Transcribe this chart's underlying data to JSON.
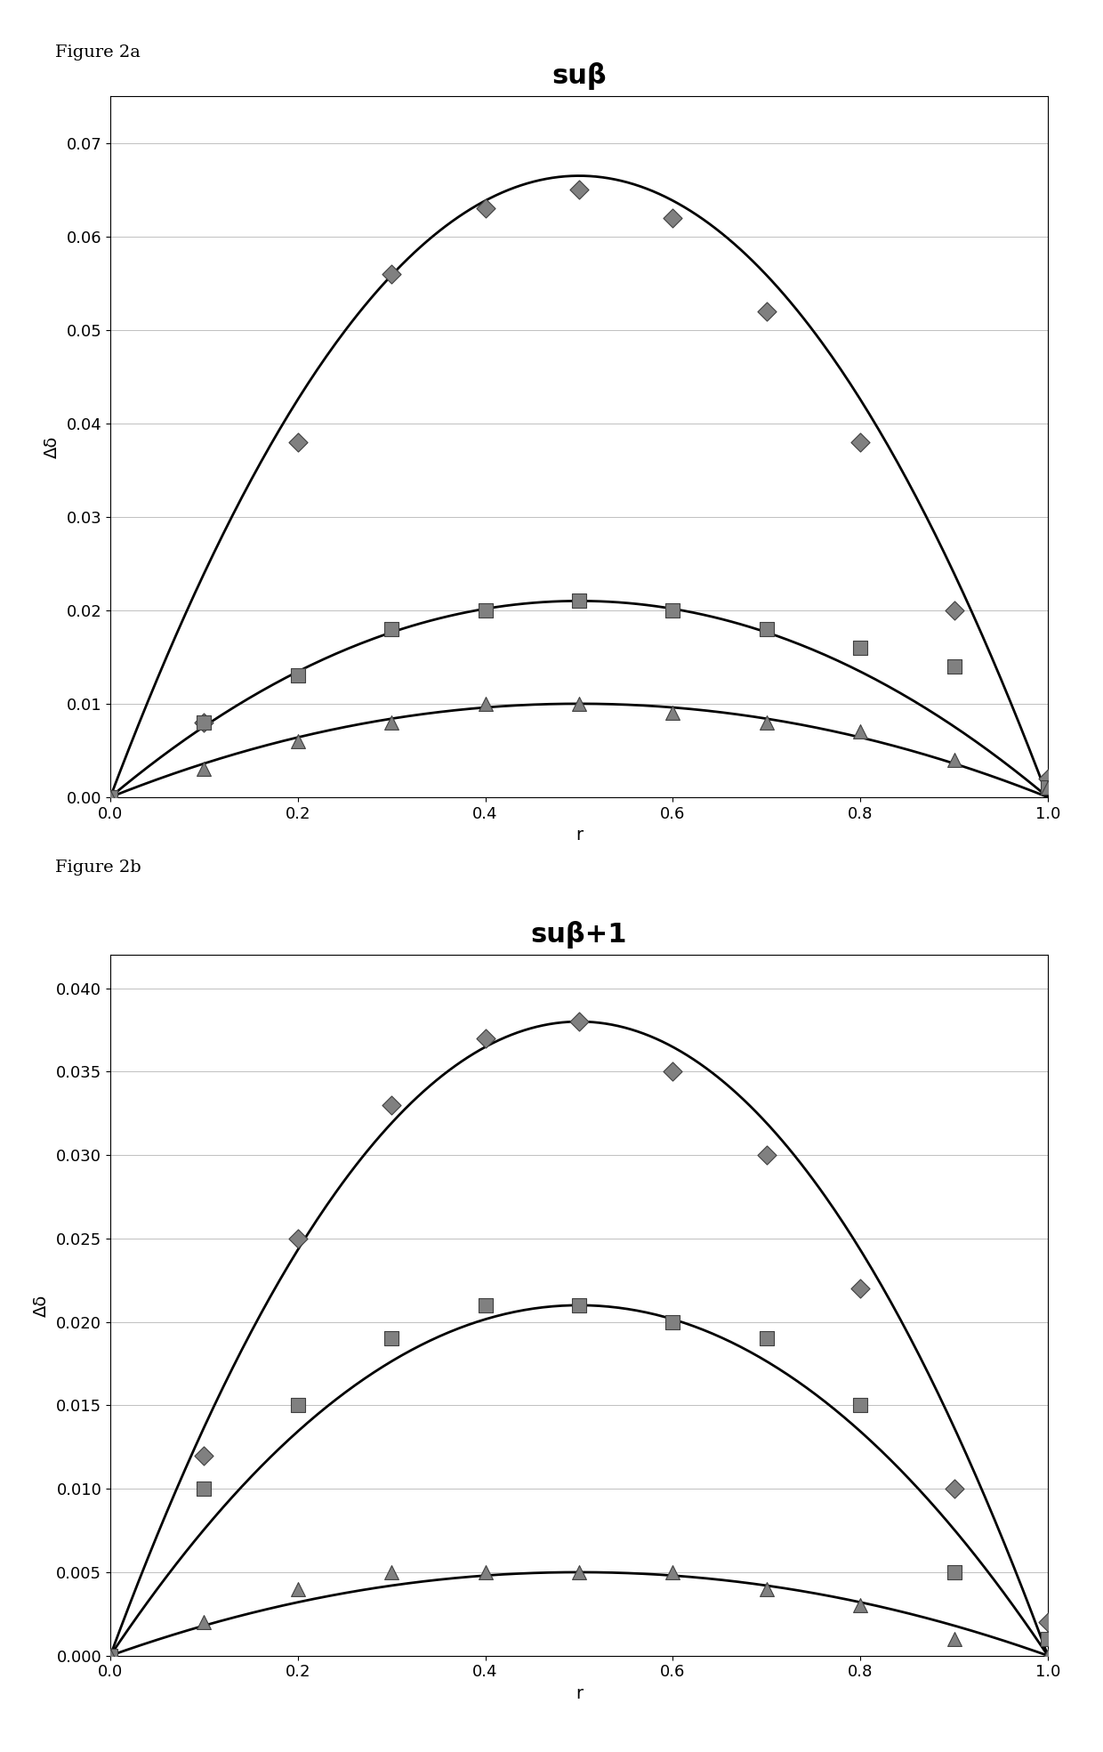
{
  "figure_labels": [
    "Figure 2a",
    "Figure 2b"
  ],
  "titles": [
    "suβ",
    "suβ+1"
  ],
  "xlabel": "r",
  "ylabel": "Δδ",
  "background_color": "#ffffff",
  "plot1": {
    "ylim": [
      0,
      0.075
    ],
    "yticks": [
      0,
      0.01,
      0.02,
      0.03,
      0.04,
      0.05,
      0.06,
      0.07
    ],
    "xlim": [
      0,
      1
    ],
    "xticks": [
      0,
      0.2,
      0.4,
      0.6,
      0.8,
      1.0
    ],
    "diamond_x": [
      0.1,
      0.2,
      0.3,
      0.4,
      0.5,
      0.6,
      0.7,
      0.8,
      0.9,
      1.0
    ],
    "diamond_y": [
      0.008,
      0.038,
      0.056,
      0.063,
      0.065,
      0.062,
      0.052,
      0.038,
      0.02,
      0.002
    ],
    "square_x": [
      0.0,
      0.1,
      0.2,
      0.3,
      0.4,
      0.5,
      0.6,
      0.7,
      0.8,
      0.9,
      1.0
    ],
    "square_y": [
      0.0,
      0.008,
      0.013,
      0.018,
      0.02,
      0.021,
      0.02,
      0.018,
      0.016,
      0.014,
      0.001
    ],
    "triangle_x": [
      0.0,
      0.1,
      0.2,
      0.3,
      0.4,
      0.5,
      0.6,
      0.7,
      0.8,
      0.9,
      1.0
    ],
    "triangle_y": [
      0.0,
      0.003,
      0.006,
      0.008,
      0.01,
      0.01,
      0.009,
      0.008,
      0.007,
      0.004,
      0.001
    ],
    "curve1_max": 0.0665,
    "curve2_max": 0.021,
    "curve3_max": 0.01
  },
  "plot2": {
    "ylim": [
      0,
      0.042
    ],
    "yticks": [
      0,
      0.005,
      0.01,
      0.015,
      0.02,
      0.025,
      0.03,
      0.035,
      0.04
    ],
    "xlim": [
      0,
      1
    ],
    "xticks": [
      0,
      0.2,
      0.4,
      0.6,
      0.8,
      1.0
    ],
    "diamond_x": [
      0.1,
      0.2,
      0.3,
      0.4,
      0.5,
      0.6,
      0.7,
      0.8,
      0.9,
      1.0
    ],
    "diamond_y": [
      0.012,
      0.025,
      0.033,
      0.037,
      0.038,
      0.035,
      0.03,
      0.022,
      0.01,
      0.002
    ],
    "square_x": [
      0.0,
      0.1,
      0.2,
      0.3,
      0.4,
      0.5,
      0.6,
      0.7,
      0.8,
      0.9,
      1.0
    ],
    "square_y": [
      0.0,
      0.01,
      0.015,
      0.019,
      0.021,
      0.021,
      0.02,
      0.019,
      0.015,
      0.005,
      0.001
    ],
    "triangle_x": [
      0.0,
      0.1,
      0.2,
      0.3,
      0.4,
      0.5,
      0.6,
      0.7,
      0.8,
      0.9,
      1.0
    ],
    "triangle_y": [
      0.0,
      0.002,
      0.004,
      0.005,
      0.005,
      0.005,
      0.005,
      0.004,
      0.003,
      0.001,
      0.0
    ],
    "curve1_max": 0.038,
    "curve2_max": 0.021,
    "curve3_max": 0.005
  },
  "marker_color": "#808080",
  "marker_edge_color": "#404040",
  "line_color": "#000000",
  "grid_color": "#c0c0c0",
  "title_fontsize": 22,
  "axis_fontsize": 14,
  "tick_fontsize": 13,
  "marker_size_diamond": 12,
  "marker_size_square": 12,
  "marker_size_triangle": 12
}
